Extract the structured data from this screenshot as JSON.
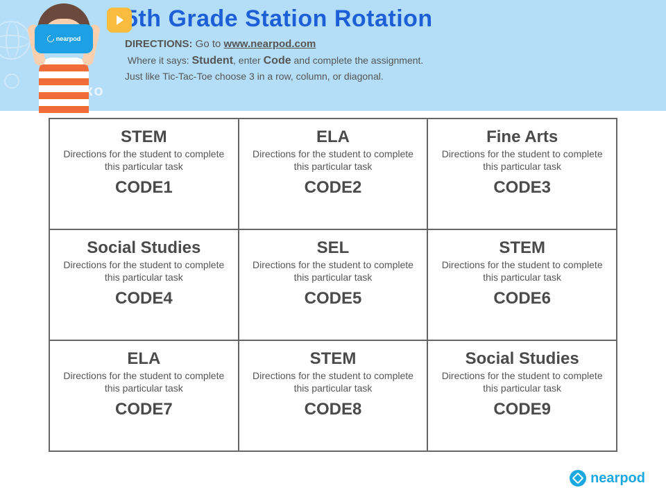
{
  "header": {
    "background_color": "#b4def7",
    "title": "5th Grade Station Rotation",
    "title_color": "#1d5fd6",
    "title_fontsize": 34,
    "directions_label": "DIRECTIONS:",
    "directions_goto": "Go to",
    "directions_url": "www.nearpod.com",
    "line2_pre": "Where it says:",
    "line2_bold1": "Student",
    "line2_mid": ", enter",
    "line2_bold2": "Code",
    "line2_post": "and complete the assignment.",
    "line3": "Just like Tic-Tac-Toe choose 3 in a row, column, or diagonal.",
    "text_color": "#555555",
    "bubble_color": "#f9bc3f",
    "vr_color": "#1da0e6",
    "vr_label": "nearpod",
    "shirt_stripe1": "#ffffff",
    "shirt_stripe2": "#f26b3a",
    "skin_color": "#f8d0b0",
    "hair_color": "#6b4a3d",
    "deco_xo": "xo"
  },
  "grid": {
    "type": "table",
    "columns": 3,
    "rows": 3,
    "border_color": "#666666",
    "cell_title_fontsize": 24,
    "cell_title_color": "#4a4a4a",
    "cell_dir_fontsize": 14,
    "cell_dir_color": "#555555",
    "cell_code_fontsize": 24,
    "cells": [
      {
        "title": "STEM",
        "dir": "Directions for the student to complete this particular task",
        "code": "CODE1"
      },
      {
        "title": "ELA",
        "dir": "Directions for the student to complete this particular task",
        "code": "CODE2"
      },
      {
        "title": "Fine Arts",
        "dir": "Directions for the student to complete this particular task",
        "code": "CODE3"
      },
      {
        "title": "Social Studies",
        "dir": "Directions for the student to complete this particular task",
        "code": "CODE4"
      },
      {
        "title": "SEL",
        "dir": "Directions for the student to complete this particular task",
        "code": "CODE5"
      },
      {
        "title": "STEM",
        "dir": "Directions for the student to complete this particular task",
        "code": "CODE6"
      },
      {
        "title": "ELA",
        "dir": "Directions for the student to complete this particular task",
        "code": "CODE7"
      },
      {
        "title": "STEM",
        "dir": "Directions for the student to complete this particular task",
        "code": "CODE8"
      },
      {
        "title": "Social Studies",
        "dir": "Directions for the student to complete this particular task",
        "code": "CODE9"
      }
    ]
  },
  "footer": {
    "brand": "nearpod",
    "brand_color": "#1ba8e0"
  }
}
